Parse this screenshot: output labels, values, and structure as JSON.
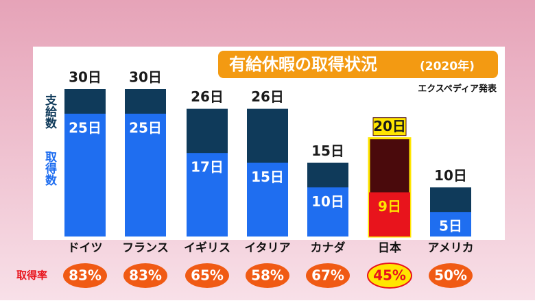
{
  "chart_data": {
    "type": "bar",
    "title": "有給休暇の取得状況",
    "title_note": "(2020年)",
    "source": "エクスペディア発表",
    "categories": [
      "ドイツ",
      "フランス",
      "イギリス",
      "イタリア",
      "カナダ",
      "日本",
      "アメリカ"
    ],
    "ylim": [
      0,
      30
    ],
    "series": [
      {
        "name": "支給数",
        "color": "#0f3a5a",
        "colors": [
          "#0f3a5a",
          "#0f3a5a",
          "#0f3a5a",
          "#0f3a5a",
          "#0f3a5a",
          "#4a0a0c",
          "#0f3a5a"
        ],
        "values": [
          30,
          30,
          26,
          26,
          15,
          20,
          10
        ],
        "value_labels": [
          "30日",
          "30日",
          "26日",
          "26日",
          "15日",
          "20日",
          "10日"
        ]
      },
      {
        "name": "取得数",
        "color": "#1f6ef0",
        "colors": [
          "#1f6ef0",
          "#1f6ef0",
          "#1f6ef0",
          "#1f6ef0",
          "#1f6ef0",
          "#e8141c",
          "#1f6ef0"
        ],
        "values": [
          25,
          25,
          17,
          15,
          10,
          9,
          5
        ],
        "value_labels": [
          "25日",
          "25日",
          "17日",
          "15日",
          "10日",
          "9日",
          "5日"
        ]
      }
    ],
    "rates": {
      "name": "取得率",
      "values": [
        83,
        83,
        65,
        58,
        67,
        45,
        50
      ],
      "value_labels": [
        "83%",
        "83%",
        "65%",
        "58%",
        "67%",
        "45%",
        "50%"
      ],
      "colors": [
        "#f05a14",
        "#f05a14",
        "#f05a14",
        "#f05a14",
        "#f05a14",
        "#ffe600",
        "#f05a14"
      ]
    },
    "highlight_color": "#ffe600"
  }
}
